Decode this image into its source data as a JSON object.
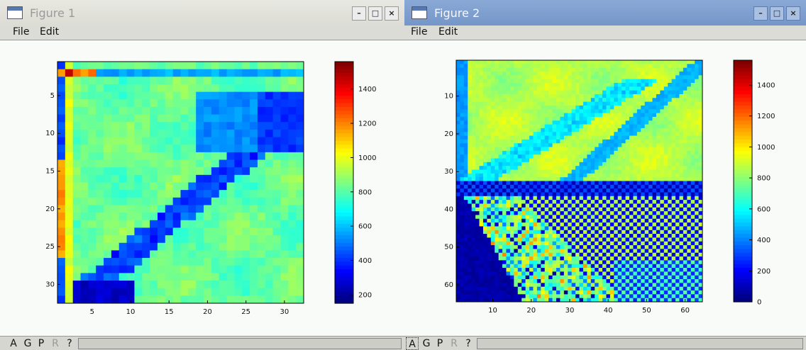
{
  "windows": [
    {
      "title": "Figure 1",
      "menu": {
        "file": "File",
        "edit": "Edit"
      },
      "titlebar_buttons": {
        "minimize": "–",
        "maximize": "□",
        "close": "×"
      },
      "toolbar": [
        "A",
        "G",
        "P",
        "R",
        "?"
      ],
      "heatmap": {
        "rows": 32,
        "cols": 32
      },
      "x_ticks": [
        "5",
        "10",
        "15",
        "20",
        "25",
        "30"
      ],
      "y_ticks": [
        "5",
        "10",
        "15",
        "20",
        "25",
        "30"
      ],
      "colorbar_ticks": [
        "1400",
        "1200",
        "1000",
        "800",
        "600",
        "400",
        "200"
      ],
      "colorbar_range": [
        150,
        1560
      ]
    },
    {
      "title": "Figure 2",
      "menu": {
        "file": "File",
        "edit": "Edit"
      },
      "titlebar_buttons": {
        "minimize": "–",
        "maximize": "□",
        "close": "×"
      },
      "toolbar": [
        "A",
        "G",
        "P",
        "R",
        "?"
      ],
      "heatmap": {
        "rows": 64,
        "cols": 64
      },
      "x_ticks": [
        "10",
        "20",
        "30",
        "40",
        "50",
        "60"
      ],
      "y_ticks": [
        "10",
        "20",
        "30",
        "40",
        "50",
        "60"
      ],
      "colorbar_ticks": [
        "1400",
        "1200",
        "1000",
        "800",
        "600",
        "400",
        "200",
        "0"
      ],
      "colorbar_range": [
        0,
        1560
      ]
    }
  ],
  "chart_data": [
    {
      "type": "heatmap",
      "title": "",
      "xlabel": "",
      "ylabel": "",
      "x_range": [
        1,
        32
      ],
      "y_range": [
        1,
        32
      ],
      "colormap": "jet",
      "color_range": [
        150,
        1560
      ],
      "colorbar_ticks": [
        1400,
        1200,
        1000,
        800,
        600,
        400,
        200
      ]
    },
    {
      "type": "heatmap",
      "title": "",
      "xlabel": "",
      "ylabel": "",
      "x_range": [
        1,
        64
      ],
      "y_range": [
        1,
        64
      ],
      "colormap": "jet",
      "color_range": [
        0,
        1560
      ],
      "colorbar_ticks": [
        1400,
        1200,
        1000,
        800,
        600,
        400,
        200,
        0
      ]
    }
  ]
}
